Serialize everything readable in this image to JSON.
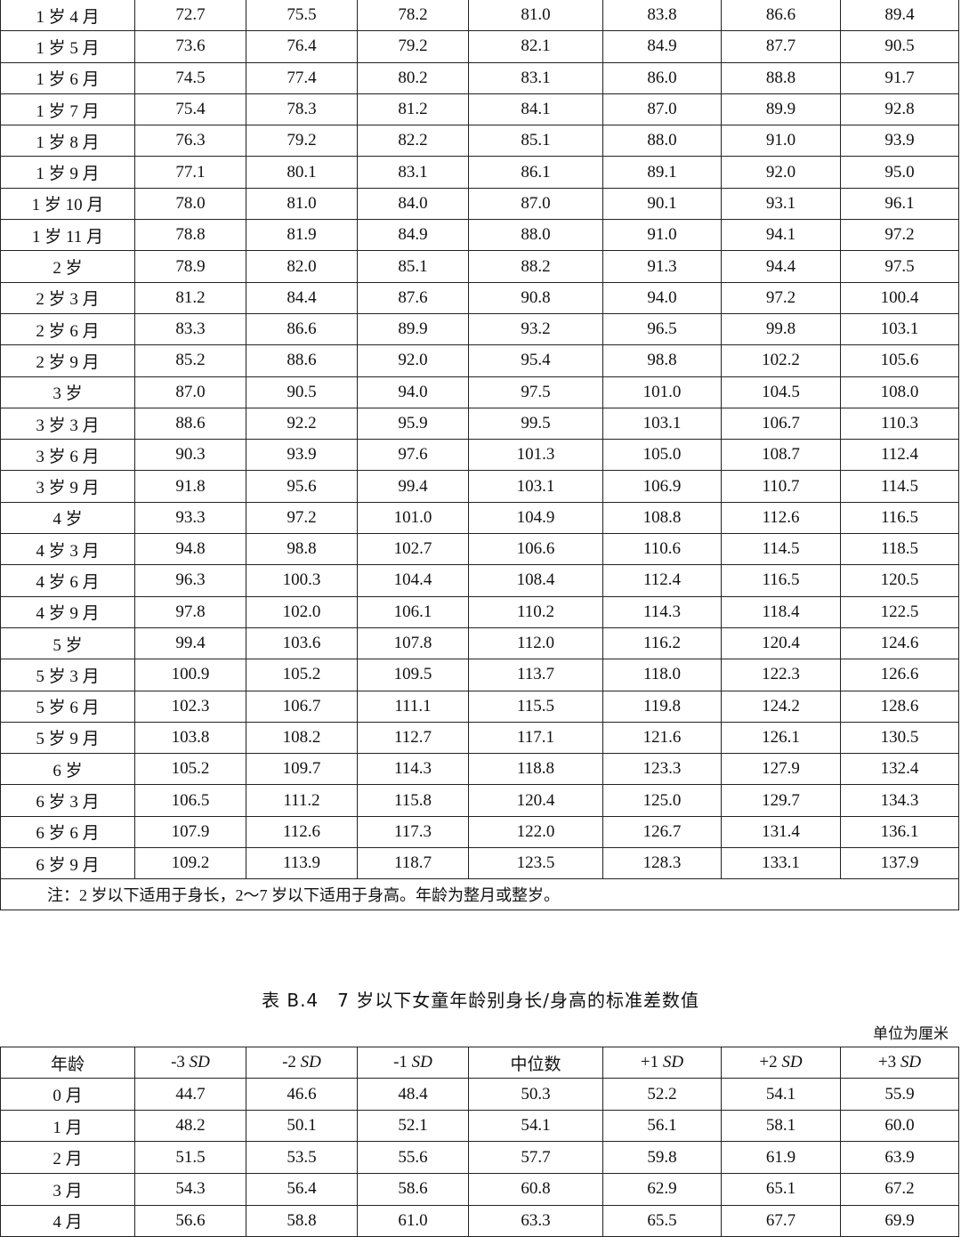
{
  "top_table": {
    "rows": [
      [
        "1 岁 4 月",
        "72.7",
        "75.5",
        "78.2",
        "81.0",
        "83.8",
        "86.6",
        "89.4"
      ],
      [
        "1 岁 5 月",
        "73.6",
        "76.4",
        "79.2",
        "82.1",
        "84.9",
        "87.7",
        "90.5"
      ],
      [
        "1 岁 6 月",
        "74.5",
        "77.4",
        "80.2",
        "83.1",
        "86.0",
        "88.8",
        "91.7"
      ],
      [
        "1 岁 7 月",
        "75.4",
        "78.3",
        "81.2",
        "84.1",
        "87.0",
        "89.9",
        "92.8"
      ],
      [
        "1 岁 8 月",
        "76.3",
        "79.2",
        "82.2",
        "85.1",
        "88.0",
        "91.0",
        "93.9"
      ],
      [
        "1 岁 9 月",
        "77.1",
        "80.1",
        "83.1",
        "86.1",
        "89.1",
        "92.0",
        "95.0"
      ],
      [
        "1 岁 10 月",
        "78.0",
        "81.0",
        "84.0",
        "87.0",
        "90.1",
        "93.1",
        "96.1"
      ],
      [
        "1 岁 11 月",
        "78.8",
        "81.9",
        "84.9",
        "88.0",
        "91.0",
        "94.1",
        "97.2"
      ],
      [
        "2 岁",
        "78.9",
        "82.0",
        "85.1",
        "88.2",
        "91.3",
        "94.4",
        "97.5"
      ],
      [
        "2 岁 3 月",
        "81.2",
        "84.4",
        "87.6",
        "90.8",
        "94.0",
        "97.2",
        "100.4"
      ],
      [
        "2 岁 6 月",
        "83.3",
        "86.6",
        "89.9",
        "93.2",
        "96.5",
        "99.8",
        "103.1"
      ],
      [
        "2 岁 9 月",
        "85.2",
        "88.6",
        "92.0",
        "95.4",
        "98.8",
        "102.2",
        "105.6"
      ],
      [
        "3 岁",
        "87.0",
        "90.5",
        "94.0",
        "97.5",
        "101.0",
        "104.5",
        "108.0"
      ],
      [
        "3 岁 3 月",
        "88.6",
        "92.2",
        "95.9",
        "99.5",
        "103.1",
        "106.7",
        "110.3"
      ],
      [
        "3 岁 6 月",
        "90.3",
        "93.9",
        "97.6",
        "101.3",
        "105.0",
        "108.7",
        "112.4"
      ],
      [
        "3 岁 9 月",
        "91.8",
        "95.6",
        "99.4",
        "103.1",
        "106.9",
        "110.7",
        "114.5"
      ],
      [
        "4 岁",
        "93.3",
        "97.2",
        "101.0",
        "104.9",
        "108.8",
        "112.6",
        "116.5"
      ],
      [
        "4 岁 3 月",
        "94.8",
        "98.8",
        "102.7",
        "106.6",
        "110.6",
        "114.5",
        "118.5"
      ],
      [
        "4 岁 6 月",
        "96.3",
        "100.3",
        "104.4",
        "108.4",
        "112.4",
        "116.5",
        "120.5"
      ],
      [
        "4 岁 9 月",
        "97.8",
        "102.0",
        "106.1",
        "110.2",
        "114.3",
        "118.4",
        "122.5"
      ],
      [
        "5 岁",
        "99.4",
        "103.6",
        "107.8",
        "112.0",
        "116.2",
        "120.4",
        "124.6"
      ],
      [
        "5 岁 3 月",
        "100.9",
        "105.2",
        "109.5",
        "113.7",
        "118.0",
        "122.3",
        "126.6"
      ],
      [
        "5 岁 6 月",
        "102.3",
        "106.7",
        "111.1",
        "115.5",
        "119.8",
        "124.2",
        "128.6"
      ],
      [
        "5 岁 9 月",
        "103.8",
        "108.2",
        "112.7",
        "117.1",
        "121.6",
        "126.1",
        "130.5"
      ],
      [
        "6 岁",
        "105.2",
        "109.7",
        "114.3",
        "118.8",
        "123.3",
        "127.9",
        "132.4"
      ],
      [
        "6 岁 3 月",
        "106.5",
        "111.2",
        "115.8",
        "120.4",
        "125.0",
        "129.7",
        "134.3"
      ],
      [
        "6 岁 6 月",
        "107.9",
        "112.6",
        "117.3",
        "122.0",
        "126.7",
        "131.4",
        "136.1"
      ],
      [
        "6 岁 9 月",
        "109.2",
        "113.9",
        "118.7",
        "123.5",
        "128.3",
        "133.1",
        "137.9"
      ]
    ],
    "note": "注：2 岁以下适用于身长，2～7 岁以下适用于身高。年龄为整月或整岁。"
  },
  "title": "表 B.4　7 岁以下女童年龄别身长/身高的标准差数值",
  "unit": "单位为厘米",
  "bottom_table": {
    "headers": [
      {
        "pre": "年龄",
        "sd": ""
      },
      {
        "pre": "-3 ",
        "sd": "SD"
      },
      {
        "pre": "-2 ",
        "sd": "SD"
      },
      {
        "pre": "-1 ",
        "sd": "SD"
      },
      {
        "pre": "中位数",
        "sd": ""
      },
      {
        "pre": "+1 ",
        "sd": "SD"
      },
      {
        "pre": "+2 ",
        "sd": "SD"
      },
      {
        "pre": "+3 ",
        "sd": "SD"
      }
    ],
    "rows": [
      [
        "0 月",
        "44.7",
        "46.6",
        "48.4",
        "50.3",
        "52.2",
        "54.1",
        "55.9"
      ],
      [
        "1 月",
        "48.2",
        "50.1",
        "52.1",
        "54.1",
        "56.1",
        "58.1",
        "60.0"
      ],
      [
        "2 月",
        "51.5",
        "53.5",
        "55.6",
        "57.7",
        "59.8",
        "61.9",
        "63.9"
      ],
      [
        "3 月",
        "54.3",
        "56.4",
        "58.6",
        "60.8",
        "62.9",
        "65.1",
        "67.2"
      ],
      [
        "4 月",
        "56.6",
        "58.8",
        "61.0",
        "63.3",
        "65.5",
        "67.7",
        "69.9"
      ]
    ]
  }
}
